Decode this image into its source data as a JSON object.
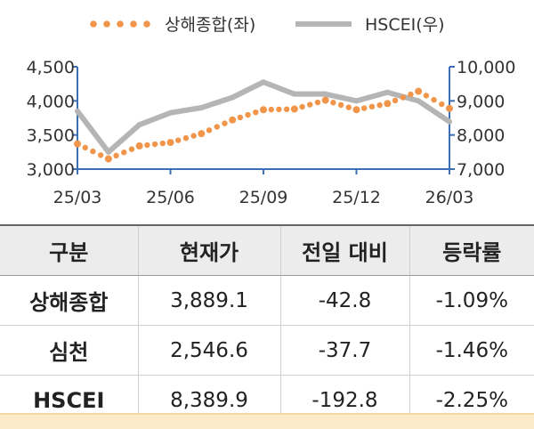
{
  "chart_data": {
    "type": "line",
    "x_ticks": [
      "25/03",
      "25/06",
      "25/09",
      "25/12",
      "26/03"
    ],
    "left_axis": {
      "ticks": [
        "3,000",
        "3,500",
        "4,000",
        "4,500"
      ],
      "ylim": [
        3000,
        4500
      ]
    },
    "right_axis": {
      "ticks": [
        "7,000",
        "8,000",
        "9,000",
        "10,000"
      ],
      "ylim": [
        7000,
        10000
      ]
    },
    "legend_position": "top",
    "series": [
      {
        "name": "상해종합(좌)",
        "axis": "left",
        "style": "dotted",
        "color": "#f0954a",
        "x": [
          "25/03",
          "25/04",
          "25/05",
          "25/06",
          "25/07",
          "25/08",
          "25/09",
          "25/10",
          "25/11",
          "25/12",
          "26/01",
          "26/02",
          "26/03"
        ],
        "values": [
          3370,
          3150,
          3340,
          3390,
          3520,
          3720,
          3870,
          3880,
          4010,
          3870,
          3960,
          4140,
          3889
        ]
      },
      {
        "name": "HSCEI(우)",
        "axis": "right",
        "style": "solid",
        "color": "#b5b5b5",
        "x": [
          "25/03",
          "25/04",
          "25/05",
          "25/06",
          "25/07",
          "25/08",
          "25/09",
          "25/10",
          "25/11",
          "25/12",
          "26/01",
          "26/02",
          "26/03"
        ],
        "values": [
          8700,
          7500,
          8300,
          8650,
          8800,
          9100,
          9550,
          9200,
          9200,
          9000,
          9250,
          9000,
          8390
        ]
      }
    ]
  },
  "table": {
    "headers": [
      "구분",
      "현재가",
      "전일 대비",
      "등락률"
    ],
    "rows": [
      [
        "상해종합",
        "3,889.1",
        "-42.8",
        "-1.09%"
      ],
      [
        "심천",
        "2,546.6",
        "-37.7",
        "-1.46%"
      ],
      [
        "HSCEI",
        "8,389.9",
        "-192.8",
        "-2.25%"
      ]
    ]
  },
  "colors": {
    "left_axis": "#3b6fb6",
    "header_bg": "#ececec",
    "bottom_strip": "#fcebc8"
  }
}
